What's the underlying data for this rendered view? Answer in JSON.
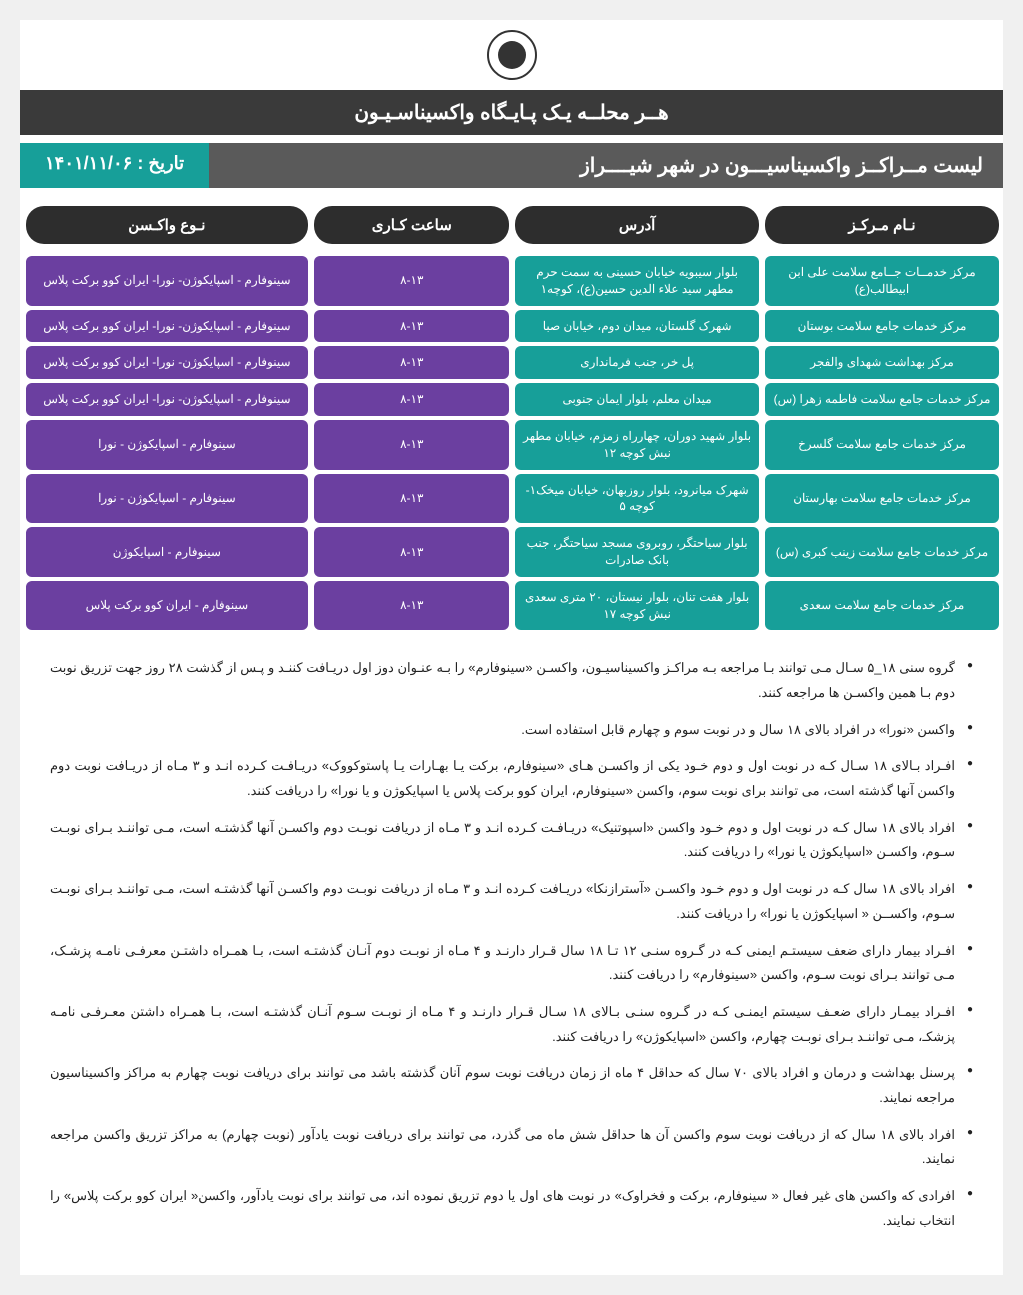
{
  "colors": {
    "dark_header": "#2d2d2d",
    "gray_bar": "#5a5a5a",
    "slogan_bg": "#3a3a3a",
    "teal": "#179f99",
    "purple": "#6b3fa0",
    "page_bg": "#ffffff",
    "text": "#222222"
  },
  "slogan": "هــر محلــه یـک پـایـگاه واکسیناسـیـون",
  "title": "لیست مــراکــز واکسیناسیـــون در شهر شیــــراز",
  "date_label": "تاریخ : ۱۴۰۱/۱۱/۰۶",
  "headers": {
    "name": "نـام مـرکـز",
    "address": "آدرس",
    "hours": "ساعت کـاری",
    "vaccine": "نـوع واکـسن"
  },
  "rows": [
    {
      "name": "مرکز خدمــات جــامع سلامت علی ابن ابیطالب(ع)",
      "address": "بلوار سیبویه خیابان حسینی به سمت حرم مطهر سید علاء الدین حسین(ع)، کوچه۱",
      "hours": "۸-۱۳",
      "vaccine": "سینوفارم - اسپایکوژن- نورا- ایران کوو برکت پلاس"
    },
    {
      "name": "مرکز خدمات جامع سلامت بوستان",
      "address": "شهرک گلستان، میدان دوم، خیابان صبا",
      "hours": "۸-۱۳",
      "vaccine": "سینوفارم - اسپایکوژن- نورا- ایران کوو برکت پلاس"
    },
    {
      "name": "مرکز بهداشت شهدای والفجر",
      "address": "پل خر، جنب فرمانداری",
      "hours": "۸-۱۳",
      "vaccine": "سینوفارم - اسپایکوژن- نورا- ایران کوو برکت پلاس"
    },
    {
      "name": "مرکز خدمات جامع سلامت فاطمه زهرا (س)",
      "address": "میدان معلم، بلوار ایمان جنوبی",
      "hours": "۸-۱۳",
      "vaccine": "سینوفارم - اسپایکوژن- نورا- ایران کوو برکت پلاس"
    },
    {
      "name": "مرکز خدمات جامع سلامت گلسرخ",
      "address": "بلوار شهید دوران، چهارراه زمزم، خیابان مطهر نبش کوچه ۱۲",
      "hours": "۸-۱۳",
      "vaccine": "سینوفارم - اسپایکوژن - نورا"
    },
    {
      "name": "مرکز خدمات جامع سلامت بهارستان",
      "address": "شهرک میانرود، بلوار روزبهان، خیابان میخک۱- کوچه ۵",
      "hours": "۸-۱۳",
      "vaccine": "سینوفارم - اسپایکوژن - نورا"
    },
    {
      "name": "مرکز خدمات جامع سلامت زینب کبری (س)",
      "address": "بلوار سیاحتگر، روبروی مسجد سیاحتگر، جنب بانک صادرات",
      "hours": "۸-۱۳",
      "vaccine": "سینوفارم - اسپایکوژن"
    },
    {
      "name": "مرکز خدمات جامع سلامت سعدی",
      "address": "بلوار هفت تنان، بلوار نیستان، ۲۰ متری سعدی نبش کوچه ۱۷",
      "hours": "۸-۱۳",
      "vaccine": "سینوفارم - ایران کوو برکت پلاس"
    }
  ],
  "notes": [
    "گروه سنی ‍۱۸_۵ سـال مـی توانند بـا مراجعه بـه مراکـز واکسیناسیـون، واکسـن «سینوفارم» را بـه عنـوان دوز اول دریـافت کننـد و پـس از گذشت ۲۸ روز جهت تزریق نوبت دوم بـا همین واکسـن ها مراجعه کنند.",
    "واکسن «نورا» در افراد بالای ۱۸ سال و در نوبت سوم و چهارم قابل استفاده است.",
    "افـراد بـالای ۱۸ سـال کـه در نوبت اول و دوم خـود یکی از واکسـن هـای «سینوفارم، برکت یـا بهـارات یـا پاستوکووک» دریـافـت کـرده انـد و ۳ مـاه از دریـافت نوبت دوم واکسن آنها گذشته است، می توانند برای نوبت سوم، واکسن «سینوفارم، ایران کوو برکت پلاس یا اسپایکوژن و یا نورا» را دریافت کنند.",
    "افراد بالای ۱۸ سال کـه در نوبت اول و دوم خـود واکسن «اسپوتنیک» دریـافـت کـرده انـد و ۳ مـاه از دریافت نوبـت دوم واکسـن آنها گذشتـه است، مـی تواننـد بـرای نوبـت سـوم، واکسـن «اسپایکوژن یا نورا» را دریافت کنند.",
    "افراد بالای ۱۸ سال کـه در نوبت اول و دوم خـود واکسـن «آسترازنکا» دریـافت کـرده انـد و ۳ مـاه از دریافت نوبـت دوم واکسـن آنها گذشتـه است، مـی تواننـد بـرای نوبـت سـوم، واکســن « اسپایکوژن یا نورا» را دریافت کنند.",
    "افـراد بیمار دارای ضعف سیستـم ایمنی کـه در گـروه سنـی ۱۲ تـا ۱۸ سال قـرار دارنـد و ۴ مـاه از نوبـت دوم آنـان گذشتـه است، بـا همـراه داشتـن معرفـی نامـه پزشـک، مـی توانند بـرای نوبت سـوم، واکسن «سینوفارم» را دریافت کنند.",
    "افـراد بیمـار دارای ضعـف سیستم ایمنـی کـه در گـروه سنـی بـالای ۱۸ سـال قـرار دارنـد و ۴ مـاه از نوبـت سـوم آنـان گذشتـه است، بـا همـراه داشتن معـرفـی نامـه پزشکـ، مـی تواننـد بـرای نوبـت چهارم، واکسن «اسپایکوژن» را دریافت کنند.",
    "پرسنل بهداشت و درمان و افراد بالای ۷۰ سال که حداقل ۴ ماه از زمان دریافت نوبت سوم آنان گذشته باشد می توانند برای دریافت نوبت چهارم به مراکز واکسیناسیون مراجعه نمایند.",
    "افراد بالای ۱۸ سال که از دریافت نوبت سوم واکسن آن ها حداقل شش ماه می گذرد، می توانند برای دریافت نوبت یادآور (نوبت چهارم) به مراکز تزریق واکسن مراجعه نمایند.",
    "افرادی که واکسن های غیر فعال « سینوفارم، برکت و فخراوک» در نوبت های اول یا دوم تزریق نموده اند، می توانند برای نوبت یادآور، واکسن« ایران کوو برکت پلاس» را انتخاب نمایند."
  ]
}
